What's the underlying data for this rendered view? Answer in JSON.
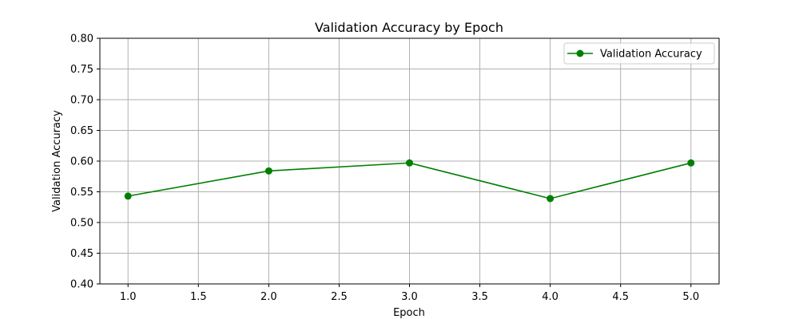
{
  "chart_data": {
    "type": "line",
    "title": "Validation Accuracy by Epoch",
    "xlabel": "Epoch",
    "ylabel": "Validation Accuracy",
    "xlim": [
      0.8,
      5.2
    ],
    "ylim": [
      0.4,
      0.8
    ],
    "x_ticks": [
      "1.0",
      "1.5",
      "2.0",
      "2.5",
      "3.0",
      "3.5",
      "4.0",
      "4.5",
      "5.0"
    ],
    "y_ticks": [
      "0.40",
      "0.45",
      "0.50",
      "0.55",
      "0.60",
      "0.65",
      "0.70",
      "0.75",
      "0.80"
    ],
    "grid": true,
    "legend_position": "top-right",
    "series": [
      {
        "name": "Validation Accuracy",
        "color": "#008000",
        "marker": "circle",
        "x": [
          1,
          2,
          3,
          4,
          5
        ],
        "values": [
          0.543,
          0.584,
          0.597,
          0.539,
          0.597
        ]
      }
    ]
  }
}
